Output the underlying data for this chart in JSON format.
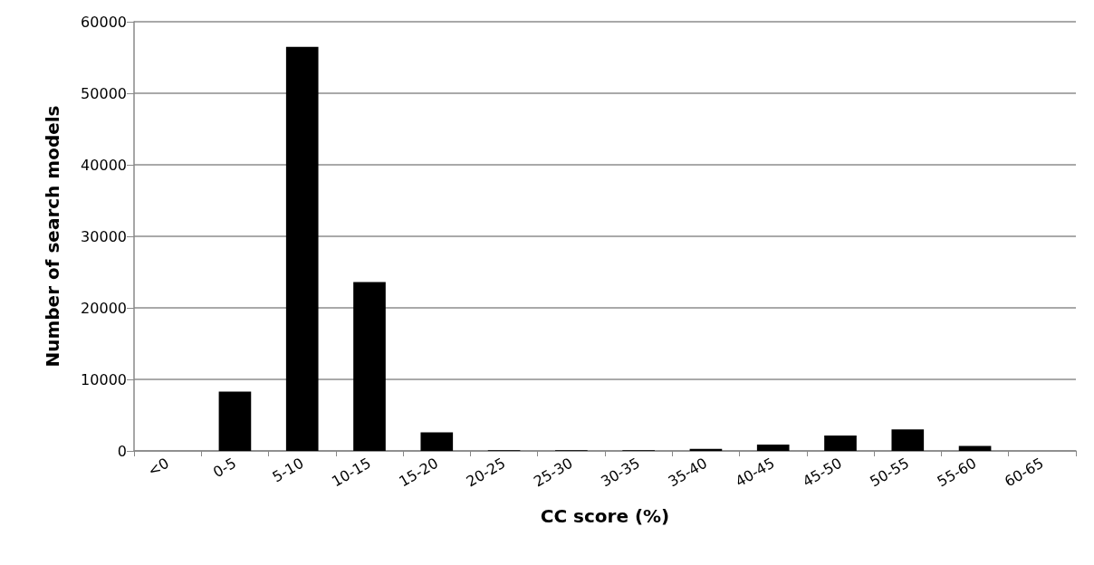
{
  "chart_data": {
    "type": "bar",
    "xlabel": "CC score (%)",
    "ylabel": "Number of search models",
    "categories": [
      "<0",
      "0-5",
      "5-10",
      "10-15",
      "15-20",
      "20-25",
      "25-30",
      "30-35",
      "35-40",
      "40-45",
      "45-50",
      "50-55",
      "55-60",
      "60-65"
    ],
    "values": [
      0,
      8300,
      56500,
      23600,
      2600,
      100,
      100,
      100,
      300,
      900,
      2150,
      3000,
      700,
      0
    ],
    "color": "#000000",
    "ylim": [
      0,
      60000
    ],
    "yticks": [
      0,
      10000,
      20000,
      30000,
      40000,
      50000,
      60000
    ],
    "grid": "y"
  }
}
